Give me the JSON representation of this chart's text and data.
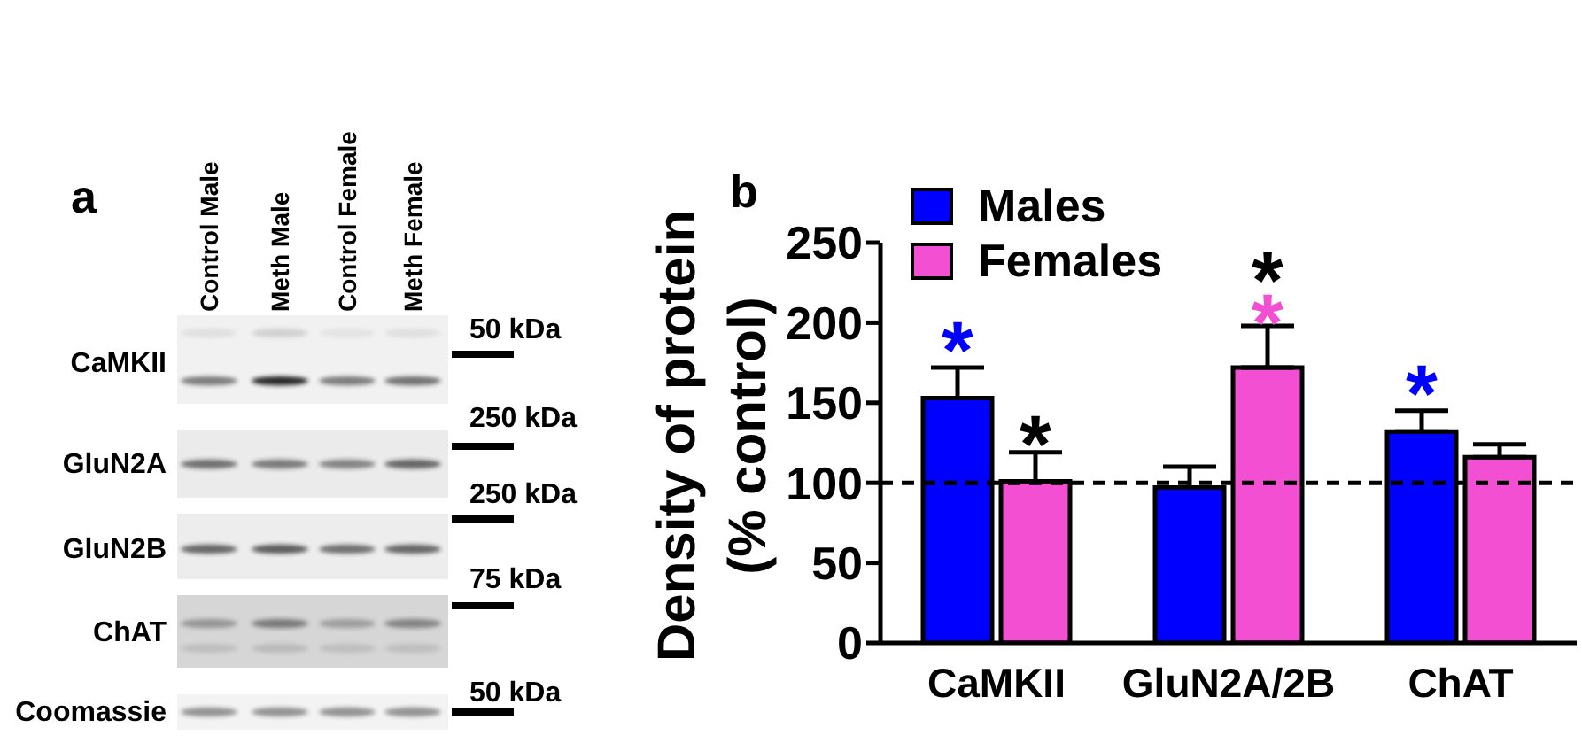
{
  "chart_data": [
    {
      "type": "other",
      "title": "a",
      "annotations": [
        "Control Male",
        "Meth Male",
        "Control Female",
        "Meth Female",
        "CaMKII",
        "GluN2A",
        "GluN2B",
        "ChAT",
        "Coomassie",
        "50 kDa",
        "250 kDa",
        "250 kDa",
        "75 kDa",
        "50 kDa"
      ]
    },
    {
      "type": "bar",
      "title": "b",
      "ylabel": "Density of protein\n(% control)",
      "categories": [
        "CaMKII",
        "GluN2A/2B",
        "ChAT"
      ],
      "series": [
        {
          "name": "Males",
          "color": "#0000ff",
          "values": [
            153,
            97,
            132
          ],
          "errors": [
            [
              153,
              172
            ],
            [
              97,
              110
            ],
            [
              132,
              145
            ]
          ]
        },
        {
          "name": "Females",
          "color": "#f24fd3",
          "values": [
            101,
            172,
            116
          ],
          "errors": [
            [
              101,
              119
            ],
            [
              172,
              198
            ],
            [
              116,
              124
            ]
          ]
        }
      ],
      "ylim": [
        0,
        250
      ],
      "yticks": [
        0,
        50,
        100,
        150,
        200,
        250
      ],
      "ref_lines": [
        {
          "axis": "y",
          "value": 100,
          "line_style": "dashed",
          "color": "#000000"
        }
      ],
      "annotations": [
        "*",
        "*",
        "*\n*",
        "*"
      ],
      "legend": "top left"
    }
  ]
}
